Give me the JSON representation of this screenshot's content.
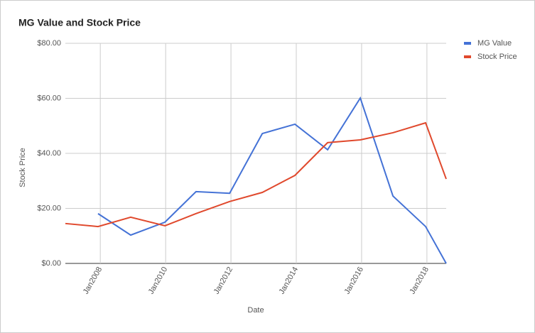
{
  "chart_data": {
    "type": "line",
    "title": "MG Value and Stock Price",
    "x_label": "Date",
    "y_label": "Stock Price",
    "x": [
      2006.93,
      2007.93,
      2008.93,
      2009.98,
      2010.93,
      2011.96,
      2012.96,
      2013.96,
      2014.96,
      2015.96,
      2016.96,
      2017.96,
      2018.59
    ],
    "series": [
      {
        "name": "MG Value",
        "color": "#4472d6",
        "values": [
          null,
          18.1,
          10.3,
          15.0,
          26.1,
          25.5,
          47.2,
          50.6,
          41.3,
          60.1,
          24.5,
          13.4,
          0
        ]
      },
      {
        "name": "Stock Price",
        "color": "#e0492d",
        "values": [
          14.5,
          13.4,
          16.8,
          13.7,
          18.1,
          22.5,
          25.8,
          32.0,
          43.9,
          44.9,
          47.5,
          51.1,
          30.7
        ]
      }
    ],
    "xlim": [
      2006.93,
      2018.59
    ],
    "xticks": [
      {
        "value": 2008,
        "label": "Jan2008"
      },
      {
        "value": 2010,
        "label": "Jan2010"
      },
      {
        "value": 2012,
        "label": "Jan2012"
      },
      {
        "value": 2014,
        "label": "Jan2014"
      },
      {
        "value": 2016,
        "label": "Jan2016"
      },
      {
        "value": 2018,
        "label": "Jan2018"
      }
    ],
    "ylim": [
      0,
      80
    ],
    "yticks": [
      {
        "value": 0,
        "label": "$0.00"
      },
      {
        "value": 20,
        "label": "$20.00"
      },
      {
        "value": 40,
        "label": "$40.00"
      },
      {
        "value": 60,
        "label": "$60.00"
      },
      {
        "value": 80,
        "label": "$80.00"
      }
    ],
    "grid": true,
    "legend": "right"
  }
}
